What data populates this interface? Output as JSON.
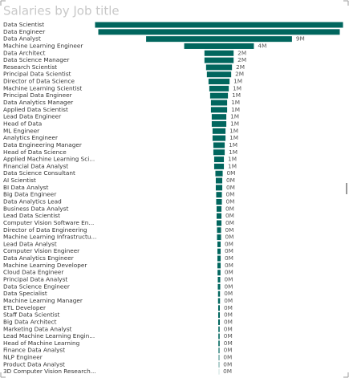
{
  "chart_data": {
    "type": "funnel",
    "title": "Salaries by Job title",
    "color": "#01665e",
    "categories": [
      "Data Scientist",
      "Data Engineer",
      "Data Analyst",
      "Machine Learning Engineer",
      "Data Architect",
      "Data Science Manager",
      "Research Scientist",
      "Principal Data Scientist",
      "Director of Data Science",
      "Machine Learning Scientist",
      "Principal Data Engineer",
      "Data Analytics Manager",
      "Applied Data Scientist",
      "Lead Data Engineer",
      "Head of Data",
      "ML Engineer",
      "Analytics Engineer",
      "Data Engineering Manager",
      "Head of Data Science",
      "Applied Machine Learning Sci...",
      "Financial Data Analyst",
      "Data Science Consultant",
      "AI Scientist",
      "BI Data Analyst",
      "Big Data Engineer",
      "Data Analytics Lead",
      "Business Data Analyst",
      "Lead Data Scientist",
      "Computer Vision Software En...",
      "Director of Data Engineering",
      "Machine Learning Infrastructu...",
      "Lead Data Analyst",
      "Computer Vision Engineer",
      "Data Analytics Engineer",
      "Machine Learning Developer",
      "Cloud Data Engineer",
      "Principal Data Analyst",
      "Data Science Engineer",
      "Data Specialist",
      "Machine Learning Manager",
      "ETL Developer",
      "Staff Data Scientist",
      "Big Data Architect",
      "Marketing Data Analyst",
      "Lead Machine Learning Engin...",
      "Head of Machine Learning",
      "Finance Data Analyst",
      "NLP Engineer",
      "Product Data Analyst",
      "3D Computer Vision Research..."
    ],
    "values": [
      15.3,
      14.9,
      9,
      4.3,
      1.8,
      1.8,
      1.6,
      1.5,
      1.3,
      1.2,
      1.1,
      1.0,
      1.0,
      0.9,
      0.9,
      0.8,
      0.8,
      0.7,
      0.7,
      0.6,
      0.6,
      0.45,
      0.4,
      0.4,
      0.35,
      0.35,
      0.3,
      0.3,
      0.3,
      0.25,
      0.25,
      0.2,
      0.2,
      0.2,
      0.2,
      0.18,
      0.15,
      0.15,
      0.12,
      0.12,
      0.1,
      0.1,
      0.1,
      0.08,
      0.08,
      0.08,
      0.06,
      0.04,
      0.03,
      0.01
    ],
    "value_labels": [
      null,
      null,
      "9M",
      "4M",
      "2M",
      "2M",
      "2M",
      "2M",
      "1M",
      "1M",
      "1M",
      "1M",
      "1M",
      "1M",
      "1M",
      "1M",
      "1M",
      "1M",
      "1M",
      "1M",
      "1M",
      "0M",
      "0M",
      "0M",
      "0M",
      "0M",
      "0M",
      "0M",
      "0M",
      "0M",
      "0M",
      "0M",
      "0M",
      "0M",
      "0M",
      "0M",
      "0M",
      "0M",
      "0M",
      "0M",
      "0M",
      "0M",
      "0M",
      "0M",
      "0M",
      "0M",
      "0M",
      "0M",
      "0M",
      "0M"
    ]
  }
}
